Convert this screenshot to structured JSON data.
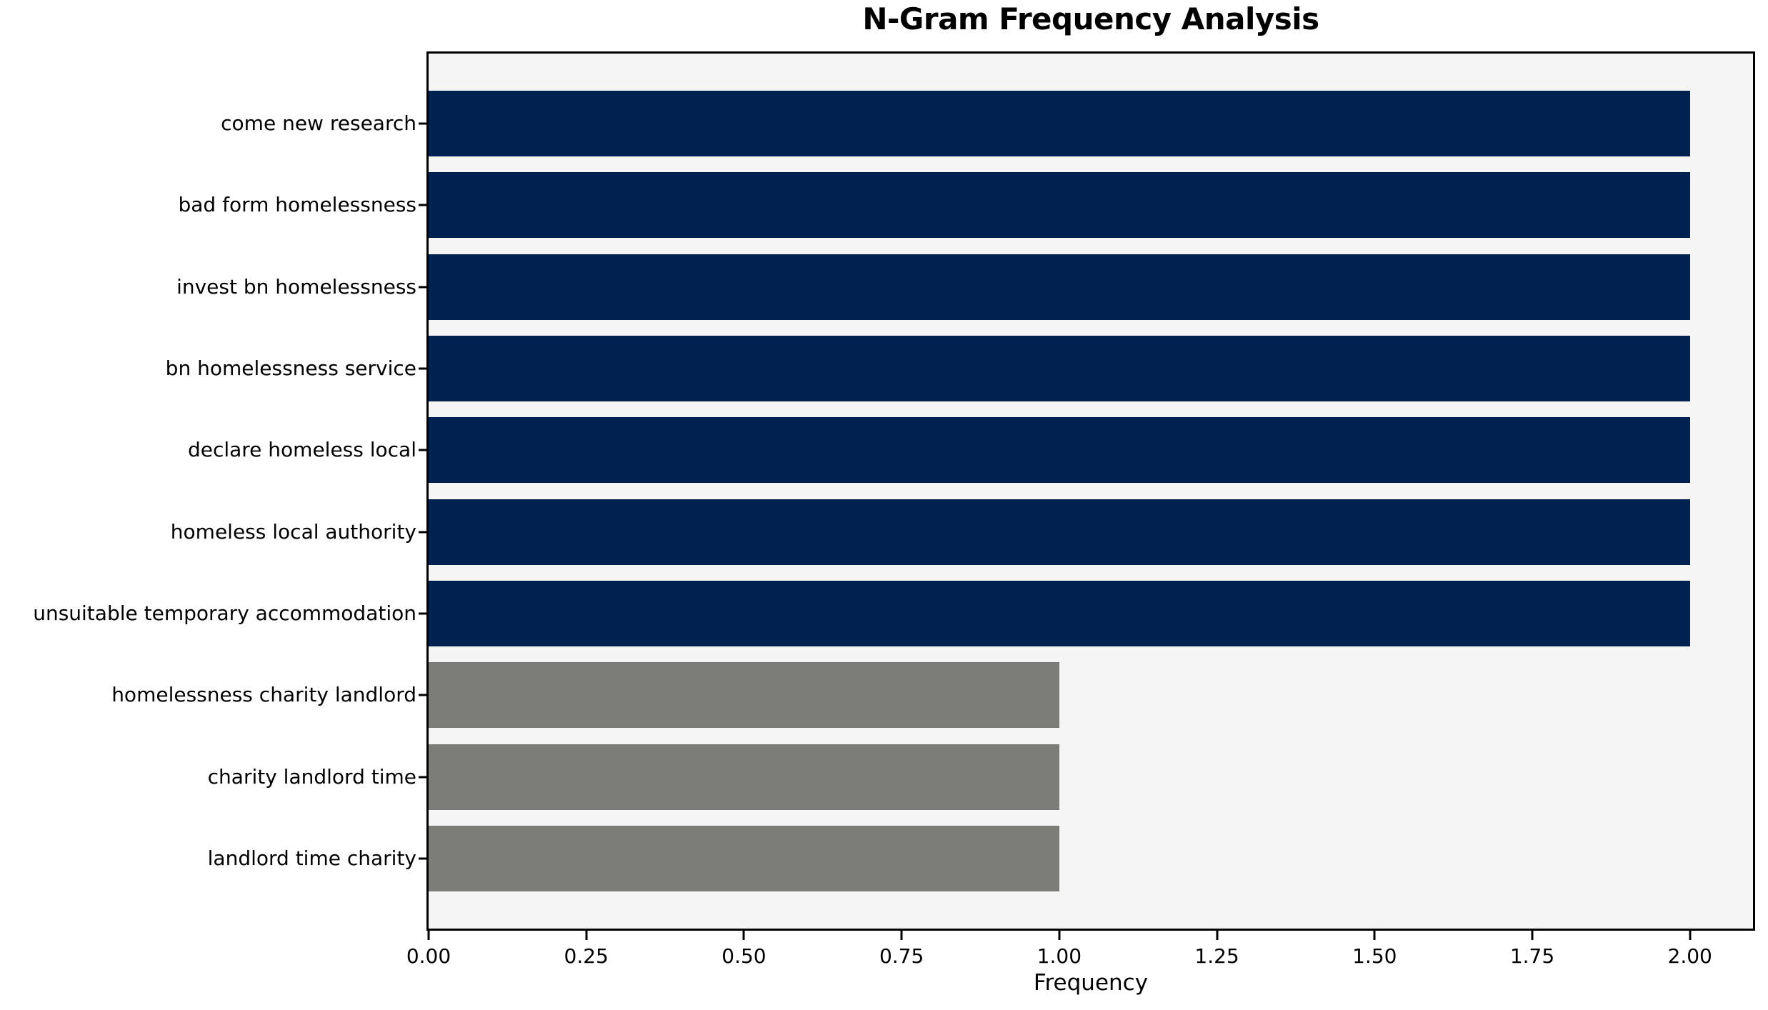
{
  "chart_data": {
    "type": "bar",
    "orientation": "horizontal",
    "title": "N-Gram Frequency Analysis",
    "xlabel": "Frequency",
    "ylabel": "",
    "categories": [
      "come new research",
      "bad form homelessness",
      "invest bn homelessness",
      "bn homelessness service",
      "declare homeless local",
      "homeless local authority",
      "unsuitable temporary accommodation",
      "homelessness charity landlord",
      "charity landlord time",
      "landlord time charity"
    ],
    "values": [
      2,
      2,
      2,
      2,
      2,
      2,
      2,
      1,
      1,
      1
    ],
    "bar_colors": [
      "#012250",
      "#012250",
      "#012250",
      "#012250",
      "#012250",
      "#012250",
      "#012250",
      "#7b7b78",
      "#7b7b78",
      "#7b7b78"
    ],
    "xlim": [
      0,
      2.1
    ],
    "x_tick_values": [
      0,
      0.25,
      0.5,
      0.75,
      1.0,
      1.25,
      1.5,
      1.75,
      2.0
    ],
    "x_tick_labels": [
      "0.00",
      "0.25",
      "0.50",
      "0.75",
      "1.00",
      "1.25",
      "1.50",
      "1.75",
      "2.00"
    ],
    "grid": false,
    "legend_position": "none",
    "colors": {
      "bar_primary": "#012250",
      "bar_secondary": "#7b7b78",
      "plot_background": "#f5f5f5",
      "figure_background": "#ffffff",
      "spine": "#000000",
      "text": "#000000"
    }
  }
}
